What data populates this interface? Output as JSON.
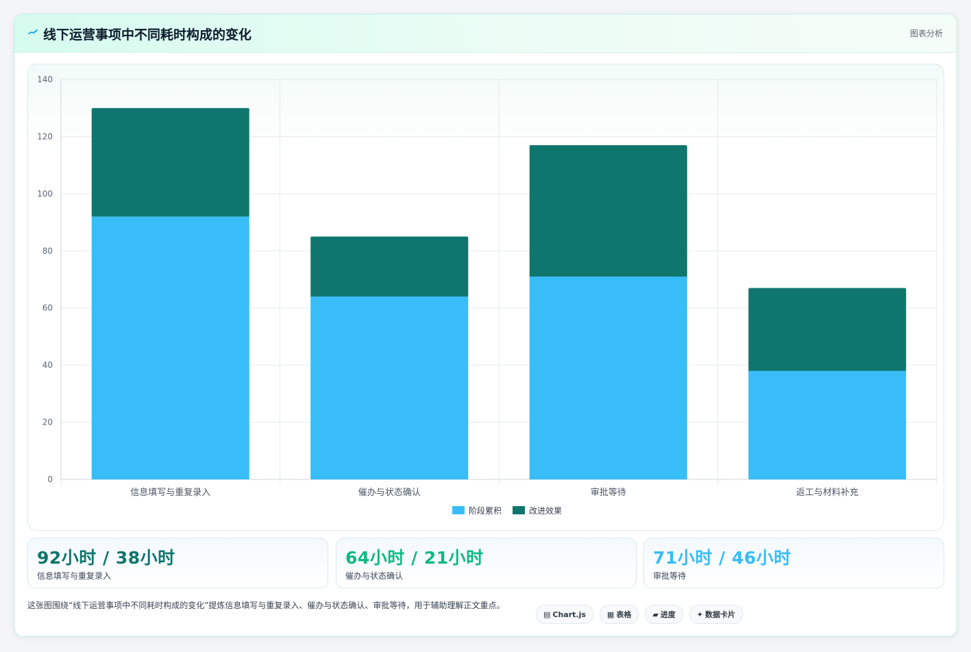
{
  "header": {
    "title": "线下运营事项中不同耗时构成的变化",
    "tag": "图表分析"
  },
  "chart_data": {
    "type": "bar",
    "stacked": true,
    "categories": [
      "信息填写与重复录入",
      "催办与状态确认",
      "审批等待",
      "返工与材料补充"
    ],
    "series": [
      {
        "name": "阶段累积",
        "values": [
          92,
          64,
          71,
          38
        ],
        "color": "#38bdf8"
      },
      {
        "name": "改进效果",
        "values": [
          38,
          21,
          46,
          29
        ],
        "color": "#0f766e"
      }
    ],
    "ylim": [
      0,
      140
    ],
    "yticks": [
      0,
      20,
      40,
      60,
      80,
      100,
      120,
      140
    ],
    "grid": true,
    "legend_position": "bottom"
  },
  "kpis": [
    {
      "value": "92小时 / 38小时",
      "label": "信息填写与重复录入",
      "color": "#0f766e"
    },
    {
      "value": "64小时 / 21小时",
      "label": "催办与状态确认",
      "color": "#10b981"
    },
    {
      "value": "71小时 / 46小时",
      "label": "审批等待",
      "color": "#38bdf8"
    }
  ],
  "description": "这张图围绕“线下运营事项中不同耗时构成的变化”提炼信息填写与重复录入、催办与状态确认、审批等待，用于辅助理解正文重点。",
  "pills": [
    {
      "icon": "▤",
      "label": "Chart.js",
      "icon_name": "chart-icon"
    },
    {
      "icon": "▦",
      "label": "表格",
      "icon_name": "table-icon"
    },
    {
      "icon": "▰",
      "label": "进度",
      "icon_name": "progress-icon"
    },
    {
      "icon": "✦",
      "label": "数据卡片",
      "icon_name": "card-icon"
    }
  ]
}
